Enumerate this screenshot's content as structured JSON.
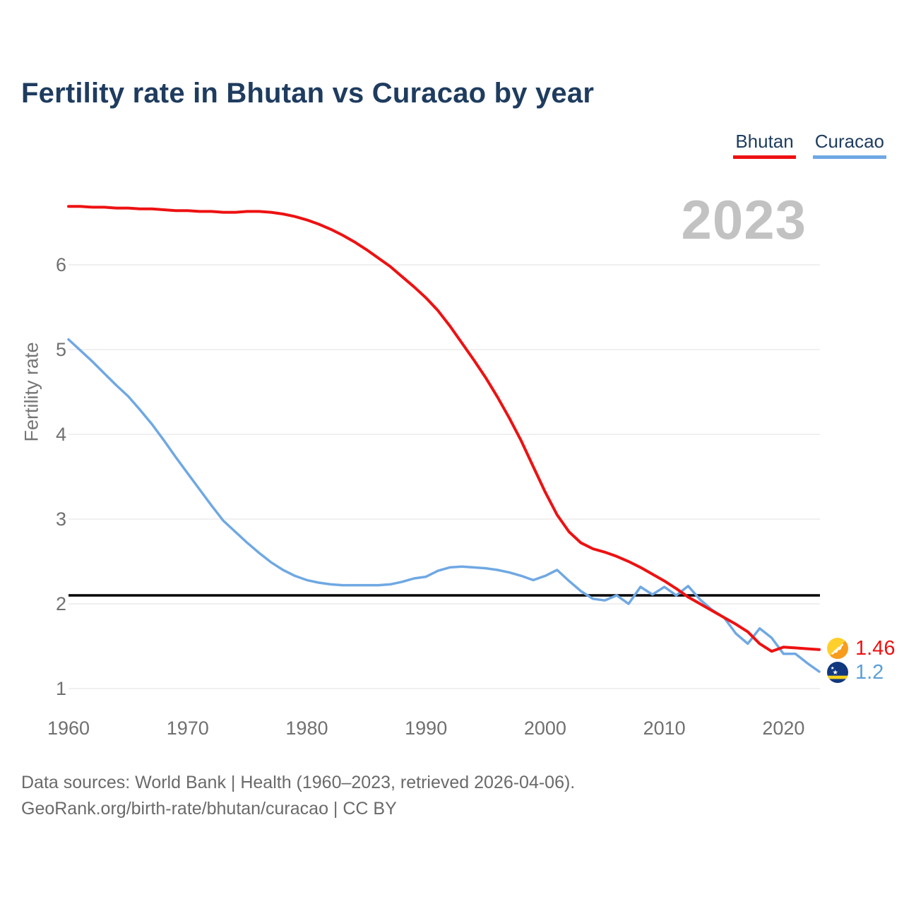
{
  "title": "Fertility rate in Bhutan vs Curacao by year",
  "watermark": "2023",
  "legend": {
    "bhutan": {
      "label": "Bhutan",
      "color": "#ee1111"
    },
    "curacao": {
      "label": "Curacao",
      "color": "#6fa8e3"
    }
  },
  "y_axis": {
    "label": "Fertility rate",
    "ticks": [
      1,
      2,
      3,
      4,
      5,
      6
    ]
  },
  "x_axis": {
    "ticks": [
      1960,
      1970,
      1980,
      1990,
      2000,
      2010,
      2020
    ]
  },
  "end_labels": {
    "bhutan": {
      "value": "1.46",
      "color": "#ee1111",
      "flag": "bhutan-flag-icon"
    },
    "curacao": {
      "value": "1.2",
      "color": "#5b9fd9",
      "flag": "curacao-flag-icon"
    }
  },
  "footer": {
    "line1": "Data sources: World Bank | Health (1960–2023, retrieved 2026-04-06).",
    "line2": "GeoRank.org/birth-rate/bhutan/curacao | CC BY"
  },
  "chart_data": {
    "type": "line",
    "title": "Fertility rate in Bhutan vs Curacao by year",
    "xlabel": "",
    "ylabel": "Fertility rate",
    "xlim": [
      1960,
      2023
    ],
    "ylim": [
      1,
      6.9
    ],
    "grid": "horizontal",
    "legend_position": "top-right",
    "reference_line": {
      "value": 2.1,
      "color": "#000000",
      "name": "replacement-level"
    },
    "x": [
      1960,
      1961,
      1962,
      1963,
      1964,
      1965,
      1966,
      1967,
      1968,
      1969,
      1970,
      1971,
      1972,
      1973,
      1974,
      1975,
      1976,
      1977,
      1978,
      1979,
      1980,
      1981,
      1982,
      1983,
      1984,
      1985,
      1986,
      1987,
      1988,
      1989,
      1990,
      1991,
      1992,
      1993,
      1994,
      1995,
      1996,
      1997,
      1998,
      1999,
      2000,
      2001,
      2002,
      2003,
      2004,
      2005,
      2006,
      2007,
      2008,
      2009,
      2010,
      2011,
      2012,
      2013,
      2014,
      2015,
      2016,
      2017,
      2018,
      2019,
      2020,
      2021,
      2022,
      2023
    ],
    "series": [
      {
        "name": "Bhutan",
        "color": "#ee1111",
        "values": [
          6.69,
          6.69,
          6.68,
          6.68,
          6.67,
          6.67,
          6.66,
          6.66,
          6.65,
          6.64,
          6.64,
          6.63,
          6.63,
          6.62,
          6.62,
          6.63,
          6.63,
          6.62,
          6.6,
          6.57,
          6.53,
          6.48,
          6.42,
          6.35,
          6.27,
          6.18,
          6.08,
          5.98,
          5.86,
          5.74,
          5.61,
          5.46,
          5.28,
          5.08,
          4.88,
          4.67,
          4.44,
          4.19,
          3.92,
          3.62,
          3.32,
          3.05,
          2.85,
          2.72,
          2.65,
          2.61,
          2.56,
          2.5,
          2.43,
          2.35,
          2.27,
          2.18,
          2.08,
          2.0,
          1.92,
          1.84,
          1.76,
          1.67,
          1.53,
          1.44,
          1.49,
          1.48,
          1.47,
          1.46
        ]
      },
      {
        "name": "Curacao",
        "color": "#6fa8e3",
        "values": [
          5.12,
          4.99,
          4.86,
          4.72,
          4.58,
          4.45,
          4.29,
          4.12,
          3.93,
          3.73,
          3.54,
          3.35,
          3.16,
          2.98,
          2.85,
          2.72,
          2.6,
          2.49,
          2.4,
          2.33,
          2.28,
          2.25,
          2.23,
          2.22,
          2.22,
          2.22,
          2.22,
          2.23,
          2.26,
          2.3,
          2.32,
          2.39,
          2.43,
          2.44,
          2.43,
          2.42,
          2.4,
          2.37,
          2.33,
          2.28,
          2.33,
          2.4,
          2.27,
          2.15,
          2.06,
          2.04,
          2.1,
          2.0,
          2.2,
          2.11,
          2.2,
          2.1,
          2.21,
          2.05,
          1.93,
          1.84,
          1.65,
          1.53,
          1.71,
          1.6,
          1.41,
          1.41,
          1.3,
          1.2
        ]
      }
    ]
  }
}
